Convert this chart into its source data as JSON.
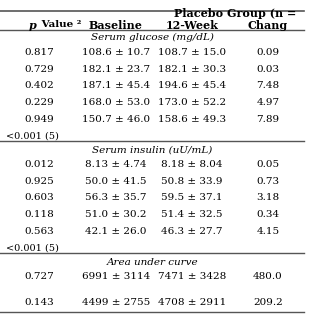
{
  "title": "Placebo Group (n =",
  "col_headers": [
    "p Value (2)",
    "Baseline",
    "12-Week",
    "Chang"
  ],
  "sections": [
    {
      "section_title": "Serum glucose (mg/dL)",
      "rows": [
        [
          "0.817",
          "108.6 ± 10.7",
          "108.7 ± 15.0",
          "0.09"
        ],
        [
          "0.729",
          "182.1 ± 23.7",
          "182.1 ± 30.3",
          "0.03"
        ],
        [
          "0.402",
          "187.1 ± 45.4",
          "194.6 ± 45.4",
          "7.48"
        ],
        [
          "0.229",
          "168.0 ± 53.0",
          "173.0 ± 52.2",
          "4.97"
        ],
        [
          "0.949",
          "150.7 ± 46.0",
          "158.6 ± 49.3",
          "7.89"
        ],
        [
          "<0.001 (5)",
          "",
          "",
          ""
        ]
      ]
    },
    {
      "section_title": "Serum insulin (uU/mL)",
      "rows": [
        [
          "0.012",
          "8.13 ± 4.74",
          "8.18 ± 8.04",
          "0.05"
        ],
        [
          "0.925",
          "50.0 ± 41.5",
          "50.8 ± 33.9",
          "0.73"
        ],
        [
          "0.603",
          "56.3 ± 35.7",
          "59.5 ± 37.1",
          "3.18"
        ],
        [
          "0.118",
          "51.0 ± 30.2",
          "51.4 ± 32.5",
          "0.34"
        ],
        [
          "0.563",
          "42.1 ± 26.0",
          "46.3 ± 27.7",
          "4.15"
        ],
        [
          "<0.001 (5)",
          "",
          "",
          ""
        ]
      ]
    },
    {
      "section_title": "Area under curve",
      "rows": [
        [
          "0.727",
          "6991 ± 3114",
          "7471 ± 3428",
          "480.0"
        ],
        [
          "",
          "",
          "",
          ""
        ],
        [
          "0.143",
          "4499 ± 2755",
          "4708 ± 2911",
          "209.2"
        ]
      ]
    }
  ],
  "bg_color": "#ffffff",
  "text_color": "#000000",
  "line_color": "#555555",
  "font_size": 7.5,
  "section_font_size": 7.5,
  "header_font_size": 8.0
}
